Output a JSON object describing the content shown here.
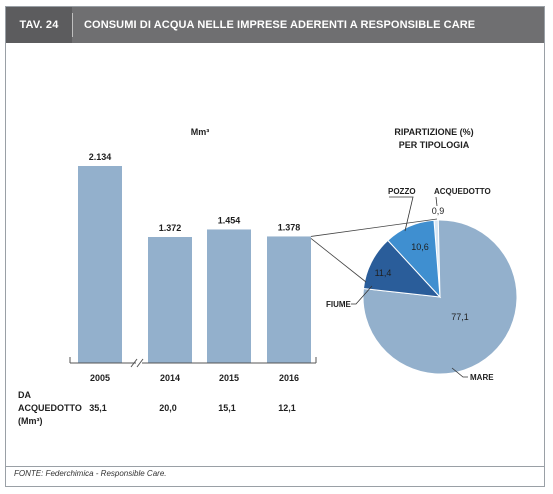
{
  "header": {
    "table_number": "TAV. 24",
    "title": "CONSUMI DI ACQUA NELLE IMPRESE ADERENTI A RESPONSIBLE CARE"
  },
  "footer": {
    "source": "FONTE: Federchimica - Responsible Care."
  },
  "colors": {
    "bar": "#93b0cc",
    "header_bg": "#6f6f71",
    "pie_mare": "#93b0cc",
    "pie_fiume": "#2a5d9a",
    "pie_pozzo": "#3f8fd0",
    "pie_acquedotto": "#d7e6f4"
  },
  "chart_data": [
    {
      "type": "bar",
      "unit_label": "Mm³",
      "categories": [
        "2005",
        "2014",
        "2015",
        "2016"
      ],
      "values": [
        2134,
        1372,
        1454,
        1378
      ],
      "value_labels": [
        "2.134",
        "1.372",
        "1.454",
        "1.378"
      ],
      "axis_break_after_index": 0,
      "secondary_row": {
        "label_lines": [
          "DA",
          "ACQUEDOTTO",
          "(Mm³)"
        ],
        "values": [
          "35,1",
          "20,0",
          "15,1",
          "12,1"
        ]
      }
    },
    {
      "type": "pie",
      "title_lines": [
        "RIPARTIZIONE (%)",
        "PER TIPOLOGIA"
      ],
      "slices": [
        {
          "name": "MARE",
          "value": 77.1,
          "label": "77,1"
        },
        {
          "name": "FIUME",
          "value": 11.4,
          "label": "11,4"
        },
        {
          "name": "POZZO",
          "value": 10.6,
          "label": "10,6"
        },
        {
          "name": "ACQUEDOTTO",
          "value": 0.9,
          "label": "0,9"
        }
      ]
    }
  ]
}
